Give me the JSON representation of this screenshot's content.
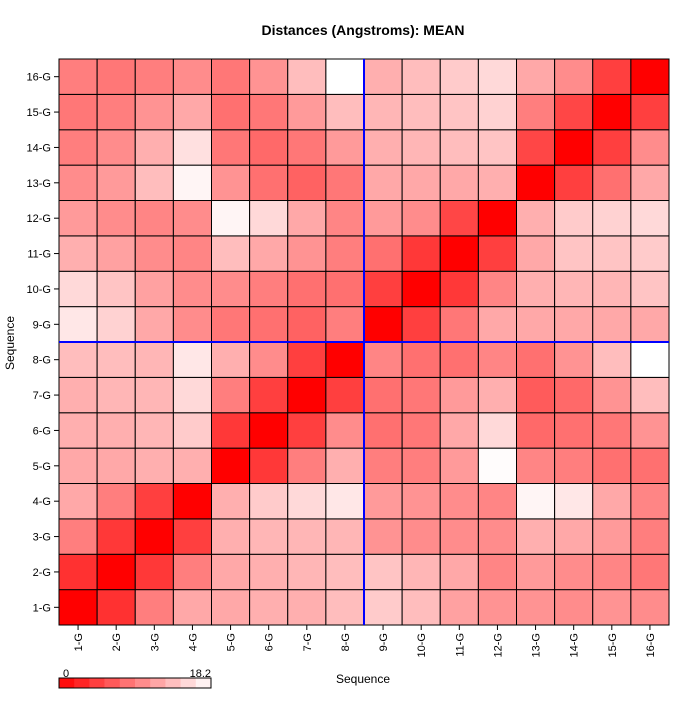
{
  "chart_data": {
    "type": "heatmap",
    "title": "Distances (Angstroms):  MEAN",
    "xlabel": "Sequence",
    "ylabel": "Sequence",
    "x_categories": [
      "1-G",
      "2-G",
      "3-G",
      "4-G",
      "5-G",
      "6-G",
      "7-G",
      "8-G",
      "9-G",
      "10-G",
      "11-G",
      "12-G",
      "13-G",
      "14-G",
      "15-G",
      "16-G"
    ],
    "y_categories": [
      "1-G",
      "2-G",
      "3-G",
      "4-G",
      "5-G",
      "6-G",
      "7-G",
      "8-G",
      "9-G",
      "10-G",
      "11-G",
      "12-G",
      "13-G",
      "14-G",
      "15-G",
      "16-G"
    ],
    "values": [
      [
        0.0,
        3.5,
        9.0,
        12.0,
        12.0,
        12.5,
        12.5,
        13.5,
        14.5,
        13.5,
        11.5,
        10.5,
        10.5,
        10.0,
        10.5,
        10.0
      ],
      [
        3.5,
        0.0,
        4.0,
        9.0,
        12.0,
        12.5,
        13.0,
        13.5,
        14.0,
        13.0,
        12.0,
        9.5,
        11.0,
        10.0,
        9.5,
        8.5
      ],
      [
        9.0,
        4.0,
        0.0,
        4.5,
        12.5,
        13.0,
        13.0,
        13.0,
        10.5,
        10.0,
        10.0,
        10.0,
        12.5,
        12.0,
        11.0,
        9.0
      ],
      [
        12.0,
        9.0,
        4.5,
        0.0,
        12.5,
        14.5,
        15.5,
        16.5,
        11.0,
        10.5,
        10.0,
        9.5,
        17.5,
        16.5,
        12.0,
        9.5
      ],
      [
        12.0,
        12.0,
        12.5,
        12.5,
        0.0,
        4.0,
        9.0,
        12.5,
        9.0,
        9.0,
        11.0,
        18.0,
        9.5,
        9.0,
        8.0,
        8.0
      ],
      [
        12.5,
        12.5,
        13.0,
        14.5,
        4.0,
        0.0,
        4.5,
        10.0,
        8.0,
        8.5,
        12.0,
        15.5,
        7.5,
        8.0,
        8.5,
        10.5
      ],
      [
        12.5,
        13.0,
        13.0,
        15.5,
        9.0,
        4.5,
        0.0,
        4.5,
        8.0,
        8.5,
        11.0,
        12.5,
        6.5,
        7.5,
        10.5,
        13.5
      ],
      [
        13.5,
        13.5,
        13.0,
        16.5,
        12.5,
        10.0,
        4.5,
        0.0,
        9.5,
        8.0,
        8.0,
        9.5,
        8.0,
        10.5,
        13.5,
        18.2
      ],
      [
        16.5,
        15.0,
        12.0,
        10.0,
        8.5,
        8.0,
        7.0,
        9.0,
        0.0,
        4.5,
        8.5,
        12.0,
        12.0,
        12.0,
        12.0,
        12.0
      ],
      [
        15.5,
        14.0,
        11.5,
        10.0,
        10.0,
        9.0,
        8.0,
        8.0,
        4.5,
        0.0,
        4.0,
        9.5,
        12.5,
        13.0,
        13.0,
        14.0
      ],
      [
        12.5,
        11.5,
        10.0,
        9.5,
        13.5,
        12.0,
        10.5,
        9.0,
        8.0,
        4.0,
        0.0,
        4.5,
        12.0,
        14.0,
        14.0,
        14.5
      ],
      [
        11.0,
        10.0,
        9.5,
        10.0,
        17.5,
        15.5,
        12.0,
        9.5,
        11.0,
        10.0,
        5.0,
        0.0,
        12.5,
        14.5,
        15.0,
        15.5
      ],
      [
        10.0,
        11.0,
        13.5,
        17.5,
        10.5,
        8.0,
        7.0,
        8.5,
        12.0,
        12.0,
        12.0,
        12.5,
        0.0,
        4.5,
        8.0,
        12.0
      ],
      [
        9.0,
        10.0,
        12.5,
        16.0,
        8.5,
        7.5,
        8.5,
        11.0,
        12.5,
        13.0,
        13.5,
        14.0,
        5.0,
        0.0,
        4.5,
        10.0
      ],
      [
        8.5,
        9.0,
        10.5,
        12.0,
        8.0,
        8.5,
        11.0,
        13.5,
        13.0,
        13.5,
        14.0,
        15.0,
        9.0,
        5.0,
        0.0,
        4.5
      ],
      [
        9.0,
        8.5,
        9.0,
        10.0,
        8.5,
        10.5,
        13.5,
        18.2,
        12.5,
        13.5,
        14.5,
        15.5,
        12.0,
        10.0,
        4.5,
        0.0
      ]
    ],
    "color_scale": {
      "min": 0,
      "max": 18.2,
      "low_color": "#ff0000",
      "high_color": "#ffffff",
      "min_label": "0",
      "max_label": "18.2"
    },
    "divider_after_category": "8-G",
    "divider_color": "#0000ff",
    "grid": true
  }
}
